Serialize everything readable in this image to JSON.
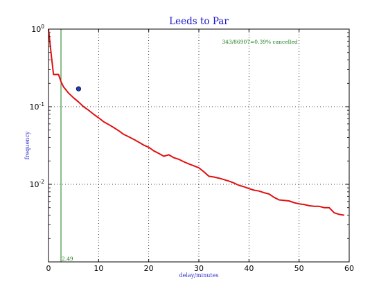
{
  "chart_data": {
    "type": "line",
    "title": "Leeds to Par",
    "xlabel": "delay/minutes",
    "ylabel": "frequency",
    "xlim": [
      0,
      60
    ],
    "ylim": [
      0.001,
      1
    ],
    "yscale": "log",
    "grid": true,
    "x_ticks": [
      "0",
      "10",
      "20",
      "30",
      "40",
      "50",
      "60"
    ],
    "y_ticks": [
      {
        "base": "10",
        "exp": "0",
        "value": 1
      },
      {
        "base": "10",
        "exp": "-1",
        "value": 0.1
      },
      {
        "base": "10",
        "exp": "-2",
        "value": 0.01
      }
    ],
    "annotation": "343/86907=0.39% cancelled",
    "vline": {
      "x": 2.49,
      "label": "2.49",
      "color": "#1a7a1a"
    },
    "point": {
      "x": 6,
      "y": 0.17,
      "color": "#1a3fd0"
    },
    "series": [
      {
        "color": "#e01010",
        "x": [
          0,
          0.5,
          1,
          1.5,
          2,
          2.5,
          3,
          4,
          5,
          6,
          7,
          8,
          9,
          10,
          11,
          12,
          13,
          14,
          15,
          16,
          17,
          18,
          19,
          20,
          21,
          22,
          23,
          24,
          25,
          26,
          27,
          28,
          29,
          30,
          31,
          32,
          33,
          34,
          35,
          36,
          37,
          38,
          39,
          40,
          41,
          42,
          43,
          44,
          45,
          46,
          47,
          48,
          49,
          50,
          51,
          52,
          53,
          54,
          55,
          56,
          57,
          58,
          59
        ],
        "values": [
          1.0,
          0.5,
          0.26,
          0.26,
          0.26,
          0.21,
          0.18,
          0.15,
          0.13,
          0.115,
          0.1,
          0.09,
          0.08,
          0.072,
          0.064,
          0.059,
          0.054,
          0.049,
          0.044,
          0.041,
          0.038,
          0.035,
          0.032,
          0.03,
          0.027,
          0.025,
          0.023,
          0.024,
          0.022,
          0.021,
          0.0195,
          0.0183,
          0.0173,
          0.0163,
          0.0145,
          0.0127,
          0.0124,
          0.012,
          0.0115,
          0.011,
          0.0104,
          0.0097,
          0.0093,
          0.0088,
          0.0084,
          0.0082,
          0.0078,
          0.0075,
          0.0068,
          0.0063,
          0.0062,
          0.0061,
          0.0058,
          0.0056,
          0.0055,
          0.0053,
          0.0052,
          0.0052,
          0.005,
          0.005,
          0.0043,
          0.0041,
          0.004
        ]
      }
    ]
  }
}
